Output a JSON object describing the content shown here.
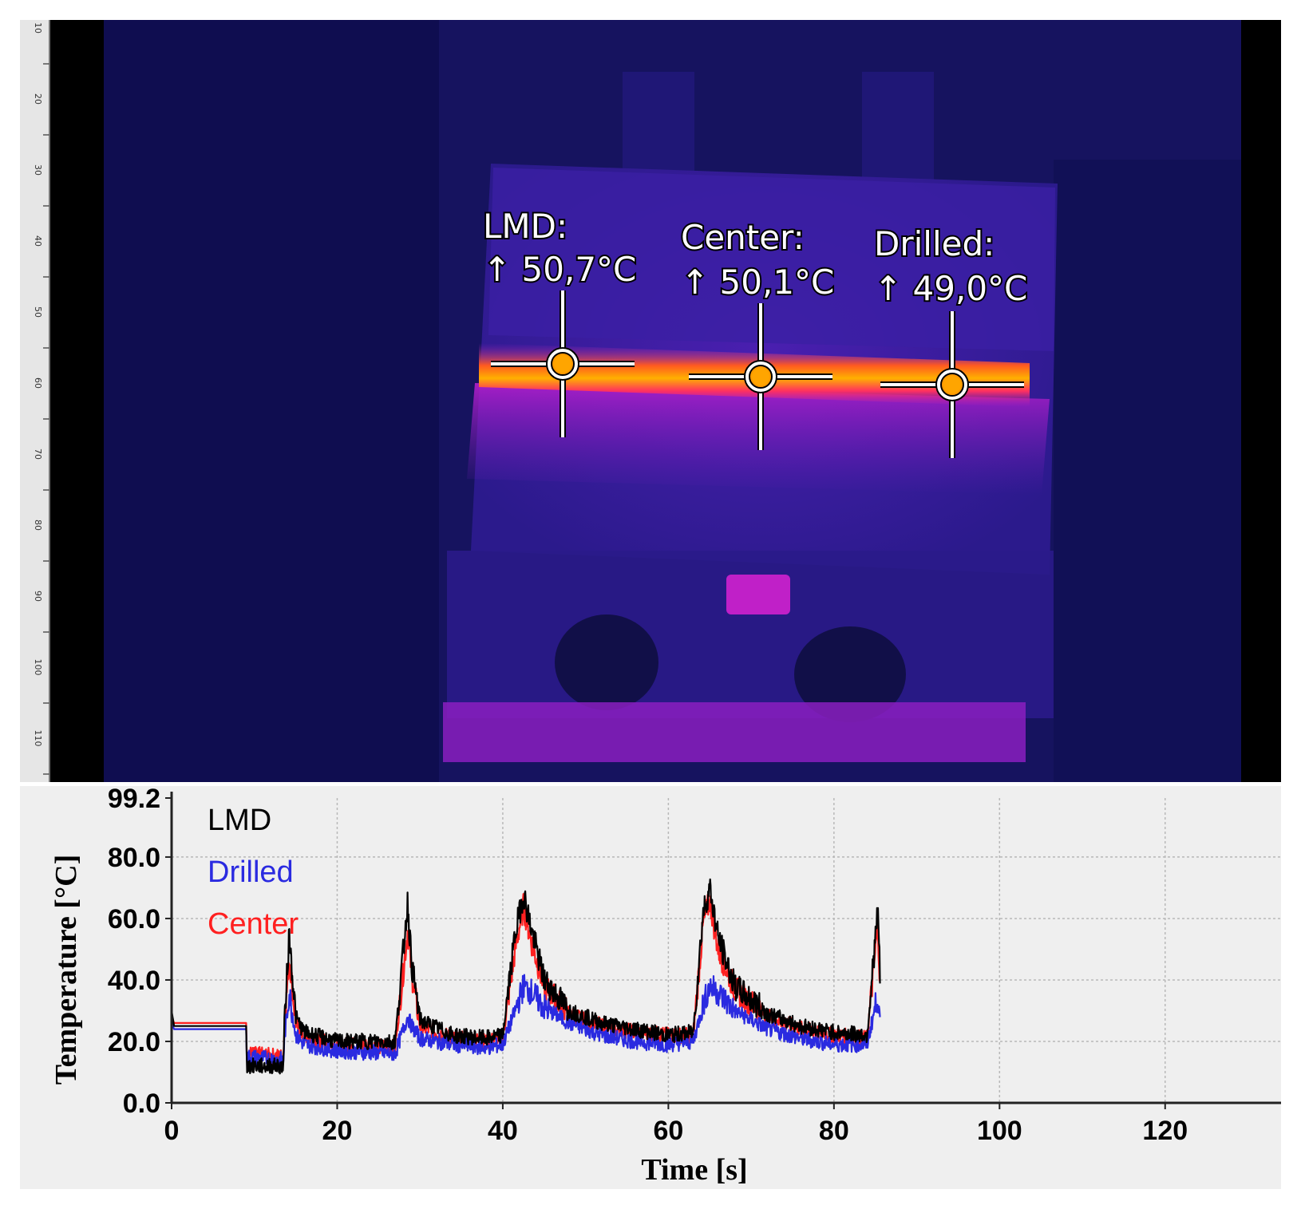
{
  "thermal_image": {
    "palette": {
      "background": "#14125e",
      "block": "#3a1aa0",
      "hot": "#ff8c00"
    },
    "markers": [
      {
        "name": "LMD",
        "label": "LMD:",
        "reading": "↑ 50,7°C"
      },
      {
        "name": "Center",
        "label": "Center:",
        "reading": "↑ 50,1°C"
      },
      {
        "name": "Drilled",
        "label": "Drilled:",
        "reading": "↑ 49,0°C"
      }
    ],
    "ruler": {
      "labels": [
        "10",
        "20",
        "30",
        "40",
        "50",
        "60",
        "70",
        "80",
        "90",
        "100",
        "110"
      ]
    }
  },
  "chart_data": {
    "type": "line",
    "title": "",
    "xlabel": "Time [s]",
    "ylabel": "Temperature [°C]",
    "xlim": [
      0,
      134
    ],
    "ylim": [
      0,
      99.2
    ],
    "x_ticks": [
      0,
      20,
      40,
      60,
      80,
      100,
      120
    ],
    "x_tick_labels": [
      "0",
      "20",
      "40",
      "60",
      "80",
      "100",
      "120"
    ],
    "y_ticks": [
      0,
      20,
      40,
      60,
      80,
      99.2
    ],
    "y_tick_labels": [
      "0.0",
      "20.0",
      "40.0",
      "60.0",
      "80.0",
      "99.2"
    ],
    "grid": true,
    "legend_position": "top-left",
    "background": "#efefef",
    "series": [
      {
        "name": "Center",
        "color": "#ff2020",
        "points": [
          [
            0,
            28
          ],
          [
            0.3,
            26
          ],
          [
            9,
            26
          ],
          [
            9.1,
            16
          ],
          [
            13.5,
            15
          ],
          [
            13.6,
            23
          ],
          [
            14.2,
            48
          ],
          [
            15,
            26
          ],
          [
            16,
            21
          ],
          [
            20,
            19
          ],
          [
            27,
            18
          ],
          [
            28.5,
            56
          ],
          [
            29,
            42
          ],
          [
            30,
            25
          ],
          [
            34,
            21
          ],
          [
            38,
            20
          ],
          [
            40,
            21
          ],
          [
            41.5,
            50
          ],
          [
            42.5,
            64
          ],
          [
            43.5,
            52
          ],
          [
            45,
            38
          ],
          [
            48,
            29
          ],
          [
            52,
            25
          ],
          [
            56,
            23
          ],
          [
            60,
            22
          ],
          [
            63,
            22
          ],
          [
            64.2,
            58
          ],
          [
            65,
            66
          ],
          [
            66,
            50
          ],
          [
            68,
            37
          ],
          [
            72,
            28
          ],
          [
            76,
            24
          ],
          [
            80,
            22
          ],
          [
            84,
            21
          ],
          [
            85.3,
            58
          ],
          [
            85.6,
            35
          ]
        ]
      },
      {
        "name": "Drilled",
        "color": "#2a2ae0",
        "points": [
          [
            0,
            26
          ],
          [
            0.3,
            24
          ],
          [
            9,
            24
          ],
          [
            9.1,
            15
          ],
          [
            13.5,
            14
          ],
          [
            13.6,
            20
          ],
          [
            14.2,
            36
          ],
          [
            15,
            22
          ],
          [
            16,
            19
          ],
          [
            20,
            17
          ],
          [
            27,
            16
          ],
          [
            28.5,
            28
          ],
          [
            29,
            25
          ],
          [
            30,
            21
          ],
          [
            34,
            19
          ],
          [
            38,
            18
          ],
          [
            40,
            19
          ],
          [
            41.5,
            30
          ],
          [
            42.5,
            38
          ],
          [
            43.5,
            36
          ],
          [
            45,
            31
          ],
          [
            48,
            26
          ],
          [
            52,
            22
          ],
          [
            56,
            20
          ],
          [
            60,
            19
          ],
          [
            63,
            20
          ],
          [
            64.2,
            32
          ],
          [
            65,
            38
          ],
          [
            66,
            36
          ],
          [
            68,
            30
          ],
          [
            72,
            24
          ],
          [
            76,
            21
          ],
          [
            80,
            19
          ],
          [
            84,
            19
          ],
          [
            85.3,
            35
          ],
          [
            85.6,
            25
          ]
        ]
      },
      {
        "name": "LMD",
        "color": "#000000",
        "points": [
          [
            0,
            30
          ],
          [
            0.3,
            25
          ],
          [
            9,
            25
          ],
          [
            9.1,
            12
          ],
          [
            13.5,
            12
          ],
          [
            13.6,
            25
          ],
          [
            14.2,
            55
          ],
          [
            15,
            28
          ],
          [
            16,
            23
          ],
          [
            20,
            20
          ],
          [
            27,
            20
          ],
          [
            28.5,
            65
          ],
          [
            29,
            45
          ],
          [
            30,
            27
          ],
          [
            34,
            22
          ],
          [
            38,
            21
          ],
          [
            40,
            22
          ],
          [
            41.5,
            55
          ],
          [
            42.5,
            68
          ],
          [
            43.5,
            56
          ],
          [
            45,
            40
          ],
          [
            48,
            30
          ],
          [
            52,
            26
          ],
          [
            56,
            24
          ],
          [
            60,
            22
          ],
          [
            63,
            23
          ],
          [
            64.2,
            62
          ],
          [
            65,
            70
          ],
          [
            66,
            54
          ],
          [
            68,
            38
          ],
          [
            72,
            29
          ],
          [
            76,
            25
          ],
          [
            80,
            23
          ],
          [
            84,
            22
          ],
          [
            85.3,
            63
          ],
          [
            85.6,
            38
          ]
        ]
      }
    ]
  }
}
